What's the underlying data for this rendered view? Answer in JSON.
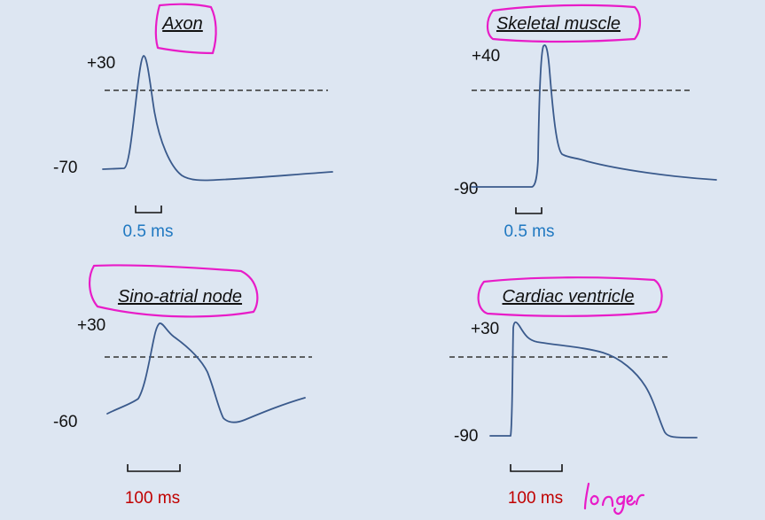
{
  "panels": [
    {
      "id": "axon",
      "title": "Axon",
      "peak_label": "+30",
      "rest_label": "-70",
      "scale_label": "0.5 ms",
      "scale_color": "#1f78c1"
    },
    {
      "id": "skeletal",
      "title": "Skeletal muscle",
      "peak_label": "+40",
      "rest_label": "-90",
      "scale_label": "0.5 ms",
      "scale_color": "#1f78c1"
    },
    {
      "id": "sa-node",
      "title": "Sino-atrial node",
      "peak_label": "+30",
      "rest_label": "-60",
      "scale_label": "100 ms",
      "scale_color": "#c00000"
    },
    {
      "id": "ventricle",
      "title": "Cardiac ventricle",
      "peak_label": "+30",
      "rest_label": "-90",
      "scale_label": "100 ms",
      "scale_color": "#c00000"
    }
  ],
  "annotation": {
    "handwritten_note": "longer",
    "ink_color": "#e81cc8"
  },
  "colors": {
    "background": "#dde6f2",
    "trace": "#3a5a8c"
  }
}
